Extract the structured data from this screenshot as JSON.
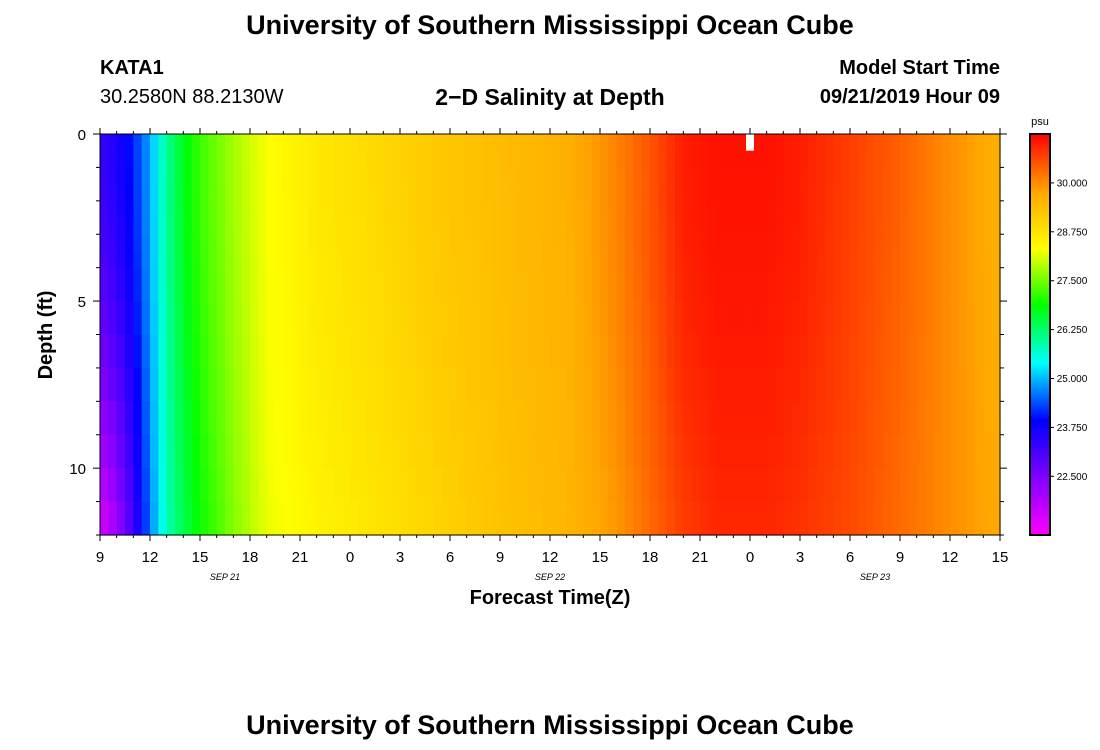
{
  "page": {
    "title_top": "University of Southern Mississippi Ocean Cube",
    "title_bottom": "University of Southern Mississippi Ocean Cube",
    "station": "KATA1",
    "coords": "30.2580N 88.2130W",
    "model_start_label": "Model Start Time",
    "model_start_value": "09/21/2019 Hour 09"
  },
  "chart_data": {
    "type": "heatmap",
    "title": "2−D Salinity at Depth",
    "xlabel": "Forecast Time(Z)",
    "ylabel": "Depth (ft)",
    "x_ticks": [
      "9",
      "12",
      "15",
      "18",
      "21",
      "0",
      "3",
      "6",
      "9",
      "12",
      "15",
      "18",
      "21",
      "0",
      "3",
      "6",
      "9",
      "12",
      "15"
    ],
    "x_range_hours": [
      0,
      54
    ],
    "date_labels": [
      {
        "text": "SEP 21",
        "hour": 7.5
      },
      {
        "text": "SEP 22",
        "hour": 27
      },
      {
        "text": "SEP 23",
        "hour": 46.5
      }
    ],
    "y_ticks": [
      0,
      5,
      10
    ],
    "y_range": [
      0,
      12
    ],
    "colorbar": {
      "unit": "psu",
      "min": 21.0,
      "max": 31.25,
      "tick_values": [
        30.0,
        28.75,
        27.5,
        26.25,
        25.0,
        23.75,
        22.5
      ],
      "tick_labels": [
        "30.000",
        "28.750",
        "27.500",
        "26.250",
        "25.000",
        "23.750",
        "22.500"
      ],
      "colors": [
        "#ff00ff",
        "#8000ff",
        "#0000ff",
        "#00ffff",
        "#00ff00",
        "#ffff00",
        "#ffa500",
        "#ff0000"
      ]
    },
    "salinity_profile": {
      "hours": [
        0,
        1,
        2,
        3,
        4,
        5,
        6,
        8,
        10,
        13,
        16,
        20,
        24,
        28,
        31,
        33,
        35,
        37,
        40,
        42,
        45,
        48,
        51,
        54
      ],
      "surface": [
        23.3,
        23.6,
        24.1,
        24.9,
        26.0,
        26.7,
        27.2,
        27.8,
        28.3,
        28.7,
        28.9,
        29.2,
        29.4,
        29.6,
        30.1,
        30.5,
        31.0,
        31.1,
        31.1,
        31.0,
        30.7,
        30.4,
        30.0,
        29.6
      ],
      "bottom": [
        21.4,
        22.0,
        23.2,
        24.6,
        25.8,
        26.4,
        26.9,
        27.6,
        28.2,
        28.5,
        28.7,
        29.0,
        29.3,
        29.5,
        29.9,
        30.3,
        30.7,
        30.9,
        30.9,
        30.8,
        30.6,
        30.3,
        30.0,
        29.7
      ]
    },
    "missing_cell": {
      "hour": 39,
      "depth_range": [
        0,
        0.5
      ]
    }
  }
}
